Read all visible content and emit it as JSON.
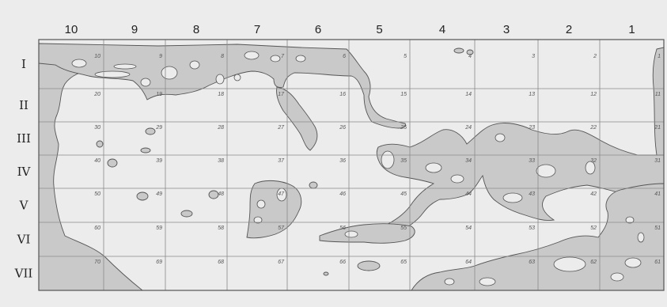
{
  "map": {
    "columns": [
      "10",
      "9",
      "8",
      "7",
      "6",
      "5",
      "4",
      "3",
      "2",
      "1"
    ],
    "rows": [
      "I",
      "II",
      "III",
      "IV",
      "V",
      "VI",
      "VII"
    ],
    "cells": [
      [
        "10",
        "9",
        "8",
        "7",
        "6",
        "5",
        "4",
        "3",
        "2",
        "1"
      ],
      [
        "20",
        "19",
        "18",
        "17",
        "16",
        "15",
        "14",
        "13",
        "12",
        "11"
      ],
      [
        "30",
        "29",
        "28",
        "27",
        "26",
        "25",
        "24",
        "23",
        "22",
        "21"
      ],
      [
        "40",
        "39",
        "38",
        "37",
        "36",
        "35",
        "34",
        "33",
        "32",
        "31"
      ],
      [
        "50",
        "49",
        "48",
        "47",
        "46",
        "45",
        "44",
        "43",
        "42",
        "41"
      ],
      [
        "60",
        "59",
        "58",
        "57",
        "56",
        "55",
        "54",
        "53",
        "52",
        "51"
      ],
      [
        "70",
        "69",
        "68",
        "67",
        "66",
        "65",
        "64",
        "63",
        "62",
        "61"
      ]
    ],
    "colors": {
      "land": "#c9c9c9",
      "lake": "#ececec",
      "water": "#ececec",
      "grid": "#8a8a8a",
      "ink": "#555555"
    }
  }
}
